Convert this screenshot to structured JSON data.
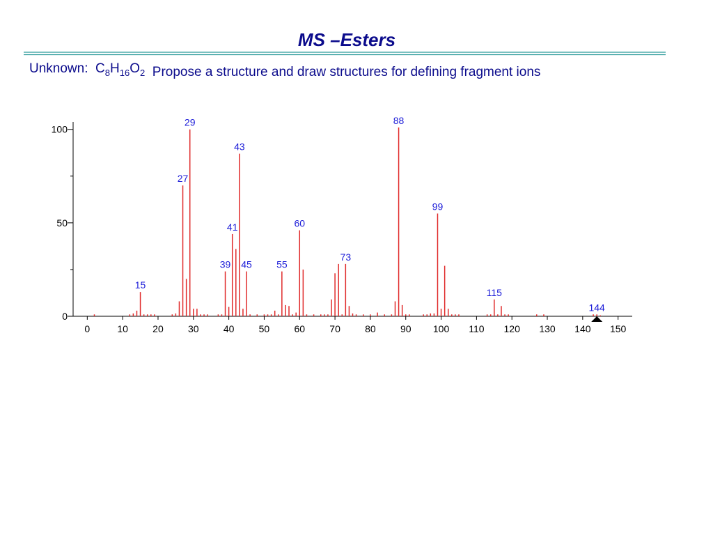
{
  "slide": {
    "title": "MS –Esters",
    "prompt": {
      "lead": "Unknown:  ",
      "formula": [
        {
          "symbol": "C",
          "count": 8
        },
        {
          "symbol": "H",
          "count": 16
        },
        {
          "symbol": "O",
          "count": 2
        }
      ],
      "rest": "  Propose a structure and draw structures for defining fragment ions"
    }
  },
  "chart_data": {
    "type": "stem",
    "color": "#e02a2a",
    "label_color": "#1c1cd8",
    "x": [
      2,
      12,
      13,
      14,
      15,
      16,
      17,
      18,
      19,
      24,
      25,
      26,
      27,
      28,
      29,
      30,
      31,
      32,
      33,
      34,
      37,
      38,
      39,
      40,
      41,
      42,
      43,
      44,
      45,
      46,
      48,
      50,
      51,
      52,
      53,
      54,
      55,
      56,
      57,
      58,
      59,
      60,
      61,
      62,
      64,
      66,
      67,
      68,
      69,
      70,
      71,
      72,
      73,
      74,
      75,
      76,
      78,
      80,
      82,
      84,
      86,
      87,
      88,
      89,
      90,
      91,
      95,
      96,
      97,
      98,
      99,
      100,
      101,
      102,
      103,
      104,
      105,
      113,
      114,
      115,
      116,
      117,
      118,
      119,
      127,
      129,
      143,
      144,
      145
    ],
    "values": [
      1,
      1,
      1.5,
      3,
      13,
      1,
      1,
      1,
      1,
      1,
      1.5,
      8,
      70,
      20,
      100,
      4,
      4,
      1,
      1,
      1,
      1,
      1,
      24,
      5,
      44,
      36,
      87,
      4,
      24,
      1,
      1,
      1,
      1,
      1,
      3,
      1,
      24,
      6,
      5.5,
      1,
      2,
      46,
      25,
      1,
      1,
      1,
      1,
      1,
      9,
      23,
      28,
      1,
      28,
      5.5,
      1.5,
      1,
      1,
      1,
      2,
      1,
      1,
      8,
      101,
      6,
      1,
      1,
      1,
      1,
      1.5,
      1.5,
      55,
      4,
      27,
      4,
      1,
      1,
      1,
      1,
      1,
      9,
      1,
      5.5,
      1,
      1,
      1,
      1,
      1,
      1,
      0.5
    ],
    "point_labels": [
      null,
      null,
      null,
      null,
      15,
      null,
      null,
      null,
      null,
      null,
      null,
      null,
      27,
      null,
      29,
      null,
      null,
      null,
      null,
      null,
      null,
      null,
      39,
      null,
      41,
      null,
      43,
      null,
      45,
      null,
      null,
      null,
      null,
      null,
      null,
      null,
      55,
      null,
      null,
      null,
      null,
      60,
      null,
      null,
      null,
      null,
      null,
      null,
      null,
      null,
      null,
      null,
      73,
      null,
      null,
      null,
      null,
      null,
      null,
      null,
      null,
      null,
      88,
      null,
      null,
      null,
      null,
      null,
      null,
      null,
      99,
      null,
      null,
      null,
      null,
      null,
      null,
      null,
      null,
      115,
      null,
      null,
      null,
      null,
      null,
      null,
      null,
      144,
      null
    ],
    "markers": [
      144
    ],
    "xlim": [
      -4,
      154
    ],
    "xticks": [
      0,
      10,
      20,
      30,
      40,
      50,
      60,
      70,
      80,
      90,
      100,
      110,
      120,
      130,
      140,
      150
    ],
    "ylim": [
      0,
      104
    ],
    "yticks": [
      0,
      50,
      100
    ],
    "yminorticks": [
      25,
      75
    ]
  }
}
